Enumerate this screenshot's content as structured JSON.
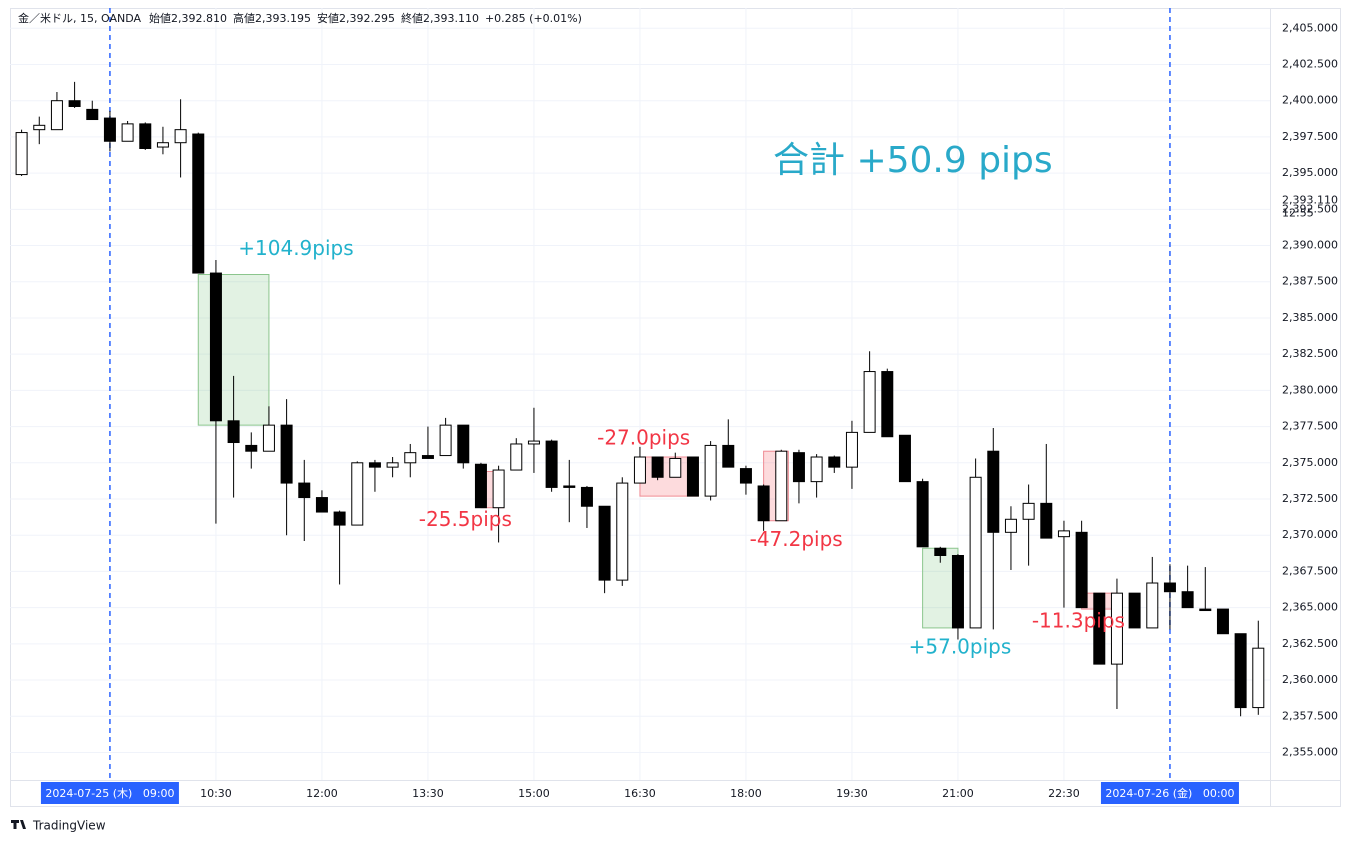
{
  "chart_data": {
    "type": "candlestick",
    "header": [
      "金／米ドル, 15, OANDA",
      "始値2,392.810",
      "高値2,393.195",
      "安値2,392.295",
      "終値2,393.110",
      "+0.285 (+0.01%)"
    ],
    "title": "合計 +50.9 pips",
    "brand": "TradingView",
    "categories": [
      null,
      null,
      null,
      null,
      null,
      "2024-07-25 (木)   09:00",
      null,
      null,
      null,
      null,
      null,
      "10:30",
      null,
      null,
      null,
      null,
      null,
      "12:00",
      null,
      null,
      null,
      null,
      null,
      "13:30",
      null,
      null,
      null,
      null,
      null,
      "15:00",
      null,
      null,
      null,
      null,
      null,
      "16:30",
      null,
      null,
      null,
      null,
      null,
      "18:00",
      null,
      null,
      null,
      null,
      null,
      "19:30",
      null,
      null,
      null,
      null,
      null,
      "21:00",
      null,
      null,
      null,
      null,
      null,
      "22:30",
      null,
      null,
      null,
      null,
      null,
      "2024-07-26 (金)   00:00",
      null,
      null,
      null,
      null,
      null
    ],
    "open": [
      2394.9,
      2398.0,
      2398.0,
      2400.0,
      2399.4,
      2398.8,
      2397.2,
      2398.4,
      2396.8,
      2397.1,
      2397.7,
      2388.1,
      2377.9,
      2376.2,
      2375.8,
      2377.6,
      2373.6,
      2372.6,
      2371.6,
      2370.7,
      2375.0,
      2374.7,
      2375.0,
      2375.5,
      2375.5,
      2377.6,
      2374.9,
      2371.9,
      2374.5,
      2376.3,
      2376.5,
      2373.4,
      2373.3,
      2372.0,
      2366.9,
      2373.6,
      2375.4,
      2374.0,
      2375.4,
      2372.7,
      2376.2,
      2374.6,
      2373.4,
      2371.0,
      2375.7,
      2373.7,
      2375.4,
      2374.7,
      2377.1,
      2381.3,
      2376.9,
      2373.7,
      2369.1,
      2368.6,
      2363.6,
      2375.8,
      2370.2,
      2371.1,
      2372.2,
      2369.9,
      2370.2,
      2366.0,
      2361.1,
      2366.0,
      2363.6,
      2366.7,
      2366.1,
      2364.9,
      2364.9,
      2363.2,
      2358.1
    ],
    "high": [
      2398.0,
      2398.9,
      2400.6,
      2401.3,
      2400.0,
      2399.3,
      2398.6,
      2398.5,
      2398.2,
      2400.1,
      2397.8,
      2389.0,
      2381.0,
      2377.1,
      2378.9,
      2379.4,
      2375.2,
      2373.1,
      2371.7,
      2375.1,
      2375.2,
      2375.4,
      2376.3,
      2377.5,
      2378.1,
      2377.6,
      2375.0,
      2374.8,
      2376.7,
      2378.8,
      2376.6,
      2375.2,
      2373.4,
      2372.0,
      2374.0,
      2376.1,
      2375.4,
      2375.7,
      2375.4,
      2376.5,
      2378.0,
      2374.8,
      2373.5,
      2375.9,
      2375.9,
      2375.6,
      2375.5,
      2377.9,
      2382.7,
      2381.5,
      2376.9,
      2373.9,
      2369.2,
      2368.7,
      2375.3,
      2377.4,
      2372.0,
      2373.5,
      2376.3,
      2371.0,
      2371.0,
      2366.0,
      2367.0,
      2366.0,
      2368.5,
      2368.0,
      2367.9,
      2367.8,
      2364.9,
      2363.2,
      2364.1
    ],
    "low": [
      2394.8,
      2397.0,
      2398.0,
      2399.5,
      2398.7,
      2396.5,
      2397.2,
      2396.6,
      2396.3,
      2394.7,
      2388.1,
      2370.8,
      2372.6,
      2374.6,
      2375.8,
      2370.0,
      2369.6,
      2371.6,
      2366.6,
      2370.7,
      2373.0,
      2374.0,
      2374.0,
      2375.3,
      2375.5,
      2374.6,
      2371.9,
      2369.5,
      2374.5,
      2374.3,
      2373.0,
      2370.9,
      2370.5,
      2366.0,
      2366.5,
      2373.6,
      2373.8,
      2374.0,
      2372.7,
      2372.4,
      2374.7,
      2372.8,
      2370.3,
      2371.0,
      2372.2,
      2372.6,
      2374.3,
      2373.2,
      2377.1,
      2376.8,
      2373.7,
      2369.2,
      2368.1,
      2362.8,
      2363.6,
      2363.5,
      2367.6,
      2367.9,
      2369.8,
      2365.0,
      2365.0,
      2361.1,
      2358.0,
      2363.6,
      2363.6,
      2363.5,
      2365.0,
      2364.8,
      2363.2,
      2357.5,
      2357.6
    ],
    "close": [
      2397.8,
      2398.3,
      2400.0,
      2399.6,
      2398.7,
      2397.2,
      2398.4,
      2396.7,
      2397.1,
      2398.0,
      2388.1,
      2377.9,
      2376.4,
      2375.8,
      2377.6,
      2373.6,
      2372.6,
      2371.6,
      2370.7,
      2375.0,
      2374.7,
      2375.0,
      2375.7,
      2375.3,
      2377.6,
      2375.0,
      2371.9,
      2374.5,
      2376.3,
      2376.5,
      2373.3,
      2373.3,
      2372.0,
      2366.9,
      2373.6,
      2375.4,
      2374.0,
      2375.3,
      2372.7,
      2376.2,
      2374.7,
      2373.6,
      2371.0,
      2375.8,
      2373.7,
      2375.4,
      2374.7,
      2377.1,
      2381.3,
      2376.8,
      2373.7,
      2369.2,
      2368.6,
      2363.6,
      2374.0,
      2370.2,
      2371.1,
      2372.2,
      2369.8,
      2370.3,
      2365.0,
      2361.1,
      2366.0,
      2363.6,
      2366.7,
      2366.1,
      2365.0,
      2364.8,
      2363.2,
      2358.1,
      2362.2
    ],
    "up_color": "#ffffff",
    "down_color": "#000000",
    "wick_color": "#000000",
    "ylim": [
      2353.1,
      2406.4
    ],
    "yticks": [
      {
        "value": 2355,
        "label": "2,355.000"
      },
      {
        "value": 2357.5,
        "label": "2,357.500"
      },
      {
        "value": 2360,
        "label": "2,360.000"
      },
      {
        "value": 2362.5,
        "label": "2,362.500"
      },
      {
        "value": 2365,
        "label": "2,365.000"
      },
      {
        "value": 2367.5,
        "label": "2,367.500"
      },
      {
        "value": 2370,
        "label": "2,370.000"
      },
      {
        "value": 2372.5,
        "label": "2,372.500"
      },
      {
        "value": 2375,
        "label": "2,375.000"
      },
      {
        "value": 2377.5,
        "label": "2,377.500"
      },
      {
        "value": 2380,
        "label": "2,380.000"
      },
      {
        "value": 2382.5,
        "label": "2,382.500"
      },
      {
        "value": 2385,
        "label": "2,385.000"
      },
      {
        "value": 2387.5,
        "label": "2,387.500"
      },
      {
        "value": 2390,
        "label": "2,390.000"
      },
      {
        "value": 2392.5,
        "label": "2,392.500"
      },
      {
        "value": 2395,
        "label": "2,395.000"
      },
      {
        "value": 2397.5,
        "label": "2,397.500"
      },
      {
        "value": 2400,
        "label": "2,400.000"
      },
      {
        "value": 2402.5,
        "label": "2,402.500"
      },
      {
        "value": 2405,
        "label": "2,405.000"
      }
    ],
    "last_price": {
      "value": 2393.11,
      "label": "2,393.110"
    },
    "countdown": "12:55",
    "grid": true,
    "trades": [
      {
        "from": 10,
        "to": 14,
        "top": 2388.0,
        "bottom": 2377.6,
        "result": "win",
        "label": "+104.9pips",
        "label_side": "above-right"
      },
      {
        "from": 26,
        "to": 27.3,
        "top": 2374.4,
        "bottom": 2371.9,
        "result": "loss",
        "label": "-25.5pips",
        "label_side": "below-left"
      },
      {
        "from": 35,
        "to": 38.3,
        "top": 2375.4,
        "bottom": 2372.7,
        "result": "loss",
        "label": "-27.0pips",
        "label_side": "above-left"
      },
      {
        "from": 42,
        "to": 43.4,
        "top": 2375.8,
        "bottom": 2371.0,
        "result": "loss",
        "label": "-47.2pips",
        "label_side": "below"
      },
      {
        "from": 51,
        "to": 53,
        "top": 2369.1,
        "bottom": 2363.6,
        "result": "win",
        "label": "+57.0pips",
        "label_side": "below"
      },
      {
        "from": 60,
        "to": 62,
        "top": 2366.0,
        "bottom": 2364.9,
        "result": "loss",
        "label": "-11.3pips",
        "label_side": "below-left"
      }
    ]
  }
}
